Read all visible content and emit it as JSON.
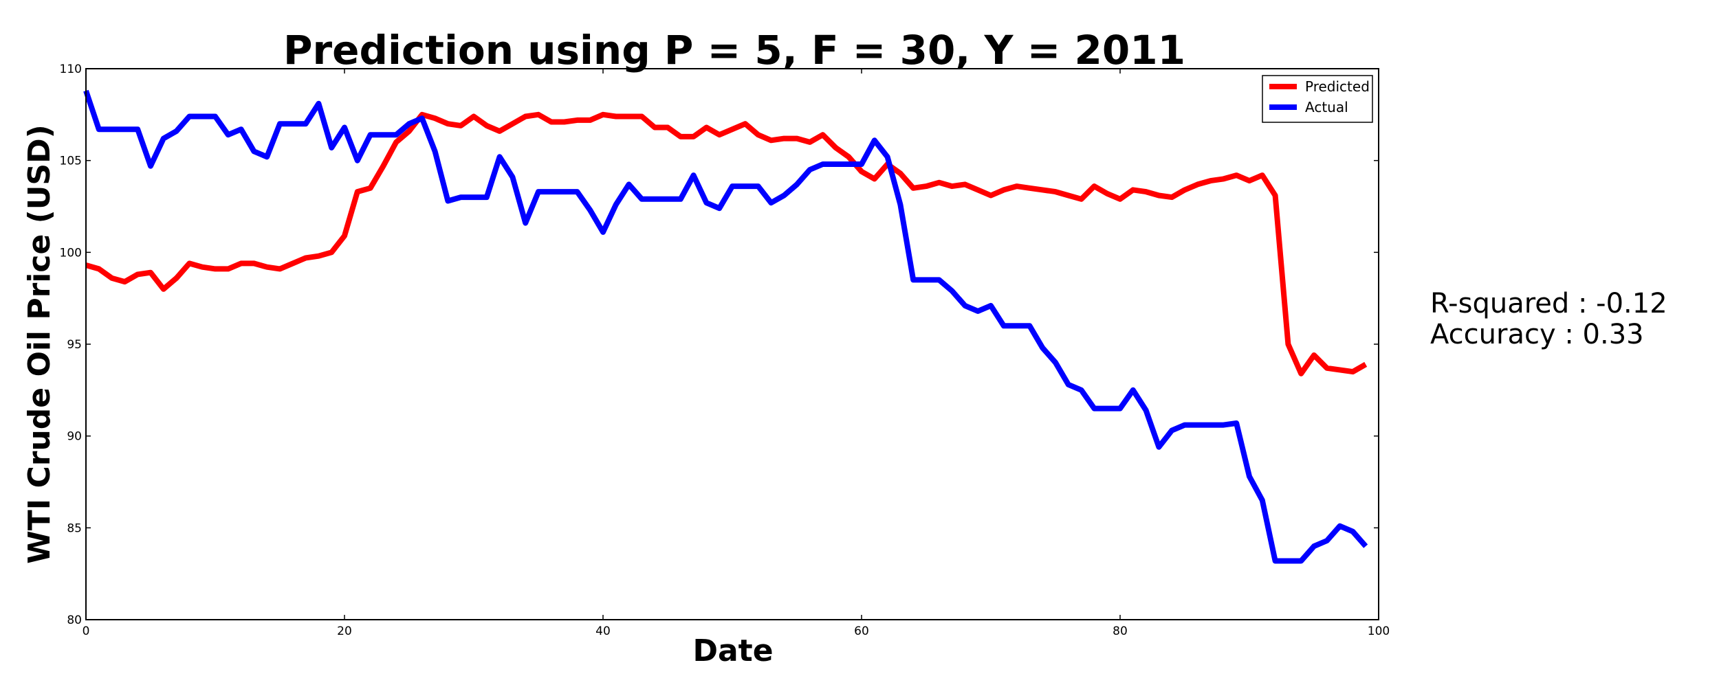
{
  "chart_data": {
    "type": "line",
    "title": "Prediction using P = 5, F = 30, Y = 2011",
    "xlabel": "Date",
    "ylabel": "WTI Crude Oil Price (USD)",
    "xlim": [
      0,
      100
    ],
    "ylim": [
      80,
      110
    ],
    "xticks": [
      0,
      20,
      40,
      60,
      80,
      100
    ],
    "yticks": [
      80,
      85,
      90,
      95,
      100,
      105,
      110
    ],
    "grid": false,
    "legend_position": "top-right",
    "x": [
      0,
      1,
      2,
      3,
      4,
      5,
      6,
      7,
      8,
      9,
      10,
      11,
      12,
      13,
      14,
      15,
      16,
      17,
      18,
      19,
      20,
      21,
      22,
      23,
      24,
      25,
      26,
      27,
      28,
      29,
      30,
      31,
      32,
      33,
      34,
      35,
      36,
      37,
      38,
      39,
      40,
      41,
      42,
      43,
      44,
      45,
      46,
      47,
      48,
      49,
      50,
      51,
      52,
      53,
      54,
      55,
      56,
      57,
      58,
      59,
      60,
      61,
      62,
      63,
      64,
      65,
      66,
      67,
      68,
      69,
      70,
      71,
      72,
      73,
      74,
      75,
      76,
      77,
      78,
      79,
      80,
      81,
      82,
      83,
      84,
      85,
      86,
      87,
      88,
      89,
      90,
      91,
      92,
      93,
      94,
      95,
      96,
      97,
      98,
      99
    ],
    "series": [
      {
        "name": "Predicted",
        "color": "#ff0000",
        "values": [
          99.3,
          99.1,
          98.6,
          98.4,
          98.8,
          98.9,
          98.0,
          98.6,
          99.4,
          99.2,
          99.1,
          99.1,
          99.4,
          99.4,
          99.2,
          99.1,
          99.4,
          99.7,
          99.8,
          100.0,
          100.9,
          103.3,
          103.5,
          104.7,
          106.0,
          106.6,
          107.5,
          107.3,
          107.0,
          106.9,
          107.4,
          106.9,
          106.6,
          107.0,
          107.4,
          107.5,
          107.1,
          107.1,
          107.2,
          107.2,
          107.5,
          107.4,
          107.4,
          107.4,
          106.8,
          106.8,
          106.3,
          106.3,
          106.8,
          106.4,
          106.7,
          107.0,
          106.4,
          106.1,
          106.2,
          106.2,
          106.0,
          106.4,
          105.7,
          105.2,
          104.4,
          104.0,
          104.8,
          104.3,
          103.5,
          103.6,
          103.8,
          103.6,
          103.7,
          103.4,
          103.1,
          103.4,
          103.6,
          103.5,
          103.4,
          103.3,
          103.1,
          102.9,
          103.6,
          103.2,
          102.9,
          103.4,
          103.3,
          103.1,
          103.0,
          103.4,
          103.7,
          103.9,
          104.0,
          104.2,
          103.9,
          104.2,
          103.1,
          95.0,
          93.4,
          94.4,
          93.7,
          93.6,
          93.5,
          93.9
        ]
      },
      {
        "name": "Actual",
        "color": "#0000ff",
        "values": [
          108.8,
          106.7,
          106.7,
          106.7,
          106.7,
          104.7,
          106.2,
          106.6,
          107.4,
          107.4,
          107.4,
          106.4,
          106.7,
          105.5,
          105.2,
          107.0,
          107.0,
          107.0,
          108.1,
          105.7,
          106.8,
          105.0,
          106.4,
          106.4,
          106.4,
          107.0,
          107.3,
          105.5,
          102.8,
          103.0,
          103.0,
          103.0,
          105.2,
          104.1,
          101.6,
          103.3,
          103.3,
          103.3,
          103.3,
          102.3,
          101.1,
          102.6,
          103.7,
          102.9,
          102.9,
          102.9,
          102.9,
          104.2,
          102.7,
          102.4,
          103.6,
          103.6,
          103.6,
          102.7,
          103.1,
          103.7,
          104.5,
          104.8,
          104.8,
          104.8,
          104.8,
          106.1,
          105.2,
          102.6,
          98.5,
          98.5,
          98.5,
          97.9,
          97.1,
          96.8,
          97.1,
          96.0,
          96.0,
          96.0,
          94.8,
          94.0,
          92.8,
          92.5,
          91.5,
          91.5,
          91.5,
          92.5,
          91.4,
          89.4,
          90.3,
          90.6,
          90.6,
          90.6,
          90.6,
          90.7,
          87.8,
          86.5,
          83.2,
          83.2,
          83.2,
          84.0,
          84.3,
          85.1,
          84.8,
          84.0
        ]
      }
    ]
  },
  "stats": {
    "r_squared": "R-squared : -0.12",
    "accuracy": "Accuracy : 0.33"
  }
}
